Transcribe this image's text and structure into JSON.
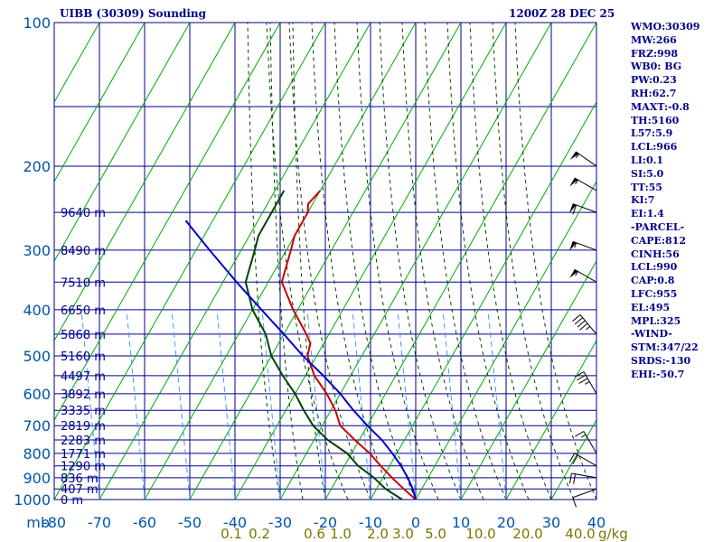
{
  "header": {
    "station": "UIBB (30309) Sounding",
    "time": "1200Z 28 DEC 25"
  },
  "indices": [
    "WMO:30309",
    "MW:266",
    "FRZ:998",
    "WB0: BG",
    "PW:0.23",
    "RH:62.7",
    "MAXT:-0.8",
    "TH:5160",
    "L57:5.9",
    "LCL:966",
    "LI:0.1",
    "SI:5.0",
    "TT:55",
    "KI:7",
    "EI:1.4",
    "-PARCEL-",
    "CAPE:812",
    "CINH:56",
    "LCL:990",
    "CAP:0.8",
    "LFC:955",
    "EL:495",
    "MPL:325",
    "-WIND-",
    "STM:347/22",
    "SRDS:-130",
    "EHI:-50.7"
  ],
  "colors": {
    "grid": "#00008b",
    "text": "#00008b",
    "dry_adiabat": "#00aa00",
    "moist_adiabat": "#004400",
    "mixing_ratio": "#4499ff",
    "temperature": "#cc0000",
    "dewpoint": "#004400",
    "parcel": "#0000cc",
    "ratio_labels": "#777700",
    "axis_labels": "#0055aa"
  },
  "chart_data": {
    "type": "line",
    "title": "UIBB (30309) Sounding",
    "subtitle": "1200Z 28 DEC 25",
    "xlabel": "",
    "ylabel": "mb",
    "xlim": [
      -80,
      40
    ],
    "ylim": [
      1000,
      100
    ],
    "y_scale": "log",
    "pressure_ticks": [
      "100",
      "200",
      "300",
      "400",
      "500",
      "600",
      "700",
      "800",
      "900",
      "1000"
    ],
    "temperature_ticks": [
      "-80",
      "-70",
      "-60",
      "-50",
      "-40",
      "-30",
      "-20",
      "-10",
      "0",
      "10",
      "20",
      "30",
      "40"
    ],
    "mixing_ratio_ticks": [
      "0.1",
      "0.2",
      "0.6",
      "1.0",
      "2.0",
      "3.0",
      "5.0",
      "10.0",
      "20.0",
      "40.0"
    ],
    "mixing_ratio_unit": "g/kg",
    "height_labels": [
      {
        "p": 250,
        "text": "9640 m"
      },
      {
        "p": 300,
        "text": "8490 m"
      },
      {
        "p": 350,
        "text": "7510 m"
      },
      {
        "p": 400,
        "text": "6650 m"
      },
      {
        "p": 450,
        "text": "5868 m"
      },
      {
        "p": 500,
        "text": "5160 m"
      },
      {
        "p": 550,
        "text": "4497 m"
      },
      {
        "p": 600,
        "text": "3892 m"
      },
      {
        "p": 650,
        "text": "3335 m"
      },
      {
        "p": 700,
        "text": "2819 m"
      },
      {
        "p": 750,
        "text": "2283 m"
      },
      {
        "p": 800,
        "text": "1771 m"
      },
      {
        "p": 850,
        "text": "1290 m"
      },
      {
        "p": 900,
        "text": "836 m"
      },
      {
        "p": 950,
        "text": "407 m"
      },
      {
        "p": 1000,
        "text": "0 m"
      }
    ],
    "series": [
      {
        "key": "temperature",
        "points": [
          [
            1000,
            0
          ],
          [
            950,
            -4
          ],
          [
            900,
            -8
          ],
          [
            850,
            -12
          ],
          [
            800,
            -16
          ],
          [
            750,
            -21
          ],
          [
            700,
            -26
          ],
          [
            650,
            -29
          ],
          [
            600,
            -33
          ],
          [
            550,
            -38
          ],
          [
            500,
            -42
          ],
          [
            470,
            -43
          ],
          [
            450,
            -45
          ],
          [
            400,
            -51
          ],
          [
            350,
            -57
          ],
          [
            300,
            -59
          ],
          [
            280,
            -60
          ],
          [
            250,
            -60
          ],
          [
            240,
            -61
          ],
          [
            225,
            -60
          ]
        ]
      },
      {
        "key": "dewpoint",
        "points": [
          [
            1000,
            -3
          ],
          [
            950,
            -8
          ],
          [
            900,
            -12
          ],
          [
            850,
            -17
          ],
          [
            800,
            -21
          ],
          [
            750,
            -27
          ],
          [
            700,
            -32
          ],
          [
            650,
            -36
          ],
          [
            600,
            -40
          ],
          [
            550,
            -45
          ],
          [
            500,
            -50
          ],
          [
            450,
            -54
          ],
          [
            400,
            -60
          ],
          [
            350,
            -65
          ],
          [
            300,
            -67
          ],
          [
            280,
            -68
          ],
          [
            260,
            -68
          ],
          [
            240,
            -68
          ],
          [
            225,
            -68
          ]
        ]
      },
      {
        "key": "parcel",
        "points": [
          [
            1000,
            0
          ],
          [
            950,
            -2
          ],
          [
            900,
            -4.5
          ],
          [
            850,
            -7.5
          ],
          [
            800,
            -11
          ],
          [
            750,
            -15
          ],
          [
            700,
            -20
          ],
          [
            650,
            -25
          ],
          [
            600,
            -30
          ],
          [
            550,
            -36
          ],
          [
            500,
            -43
          ],
          [
            450,
            -50
          ],
          [
            400,
            -58
          ],
          [
            350,
            -67
          ],
          [
            300,
            -77
          ],
          [
            260,
            -86
          ]
        ]
      }
    ],
    "wind_barbs": [
      {
        "p": 950,
        "dir": 250,
        "speed": 10
      },
      {
        "p": 900,
        "dir": 280,
        "speed": 20
      },
      {
        "p": 850,
        "dir": 300,
        "speed": 20
      },
      {
        "p": 800,
        "dir": 330,
        "speed": 15
      },
      {
        "p": 600,
        "dir": 330,
        "speed": 35
      },
      {
        "p": 450,
        "dir": 320,
        "speed": 45
      },
      {
        "p": 350,
        "dir": 300,
        "speed": 55
      },
      {
        "p": 300,
        "dir": 290,
        "speed": 55
      },
      {
        "p": 250,
        "dir": 290,
        "speed": 60
      },
      {
        "p": 225,
        "dir": 300,
        "speed": 55
      },
      {
        "p": 200,
        "dir": 305,
        "speed": 55
      }
    ]
  }
}
